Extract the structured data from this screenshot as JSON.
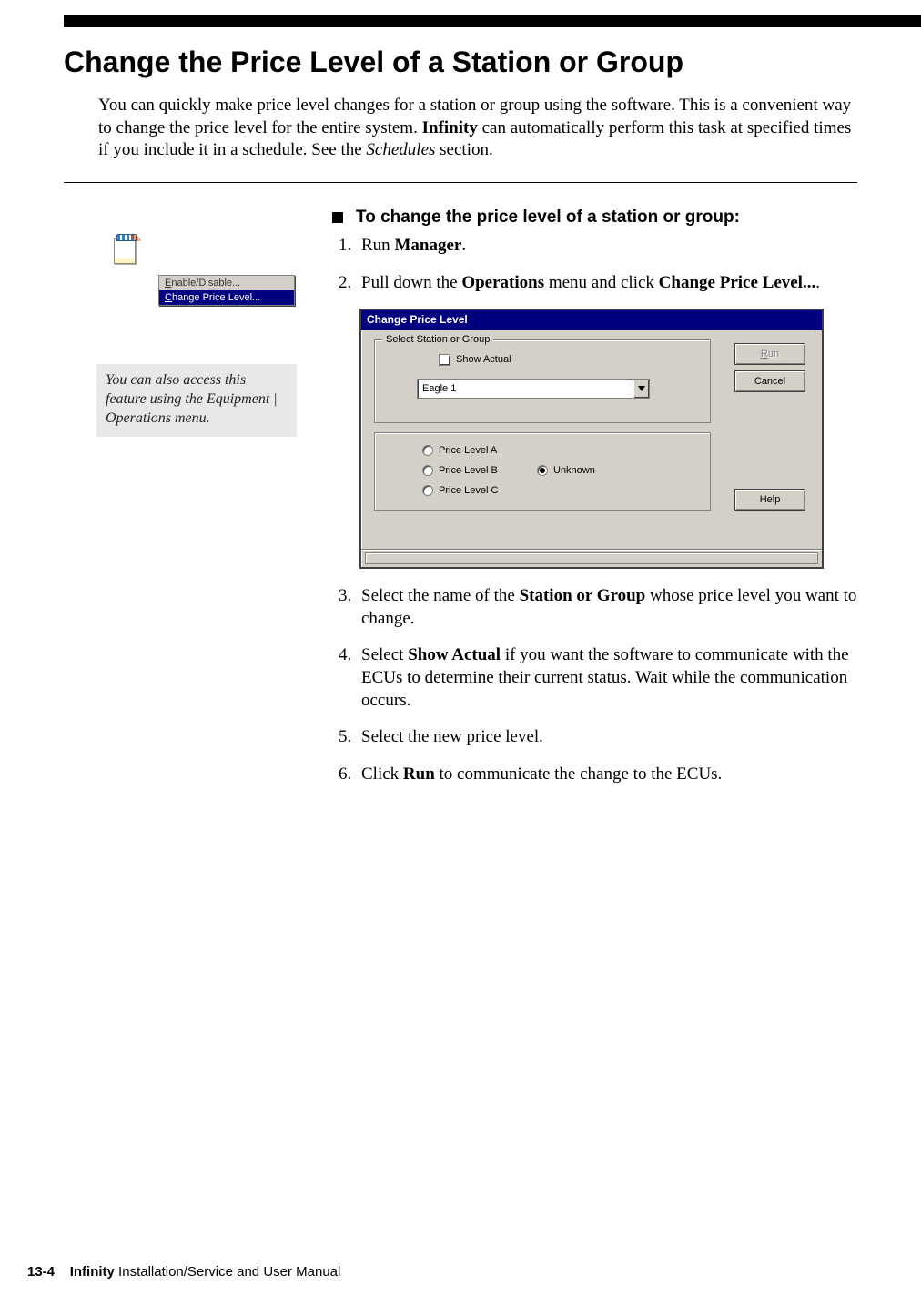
{
  "page": {
    "title": "Change the Price Level of a Station or Group",
    "intro_html": "You can quickly make price level changes for a station or group using the software. This is a convenient way to change the price level for the entire system. <span class=\"b\">Infinity</span> can automatically perform this task at specified times if you include it in a schedule. See the <span class=\"i\">Schedules</span> section."
  },
  "mini_menu": {
    "item1_pre": "E",
    "item1_rest": "nable/Disable...",
    "item2_pre": "C",
    "item2_rest": "hange Price Level..."
  },
  "sidebar_note": "You can also access this feature using the Equipment | Operations menu.",
  "procedure": {
    "heading": "To change the price level of a station or group:",
    "step1_html": "Run <b>Manager</b>.",
    "step2_html": "Pull down the <b>Operations</b> menu and click <b>Change Price Level...</b>.",
    "step3_html": "Select the name of the <b>Station or Group</b> whose price level you want to change.",
    "step4_html": "Select <b>Show Actual</b> if you want the software to communicate with the ECUs to determine their current status. Wait while the communication occurs.",
    "step5": "Select the new price level.",
    "step6_html": "Click <b>Run</b> to communicate the change to the ECUs."
  },
  "dialog": {
    "title": "Change Price Level",
    "groupbox1_legend": "Select Station or Group",
    "show_actual_label": "Show Actual",
    "combo_value": "Eagle 1",
    "radios": {
      "a": "Price Level A",
      "b": "Price Level B",
      "c": "Price Level C",
      "unknown": "Unknown"
    },
    "buttons": {
      "run_u": "R",
      "run_rest": "un",
      "cancel": "Cancel",
      "help": "Help"
    },
    "colors": {
      "titlebar_bg": "#000080",
      "face": "#d4d0c8"
    }
  },
  "footer": {
    "page_number": "13-4",
    "product": "Infinity",
    "rest": " Installation/Service and User Manual"
  }
}
